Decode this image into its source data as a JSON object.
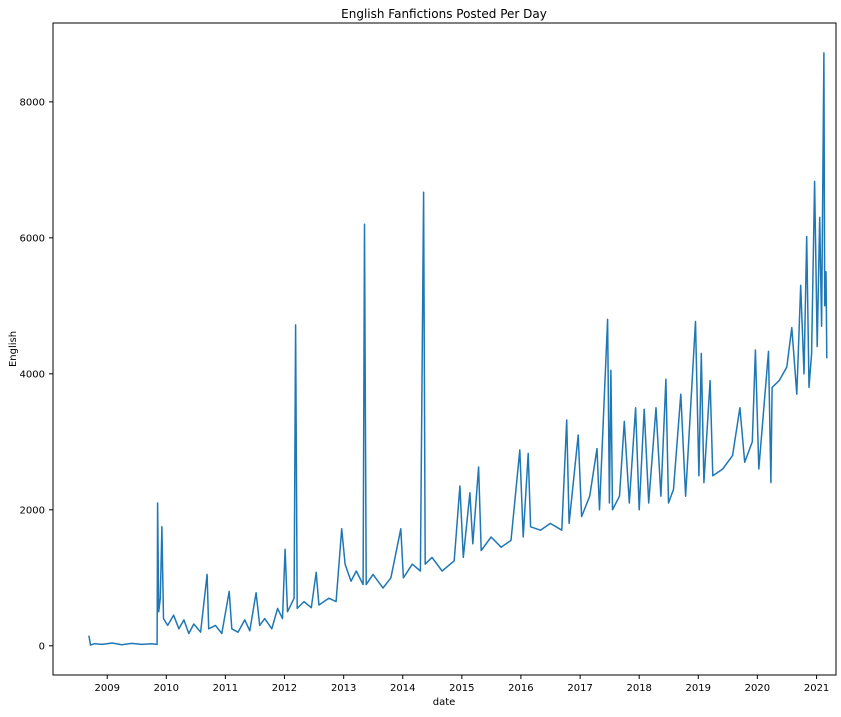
{
  "chart_data": {
    "type": "line",
    "title": "English Fanfictions Posted Per Day",
    "xlabel": "date",
    "ylabel": "English",
    "x_range": [
      "2008-02-01",
      "2021-05-01"
    ],
    "ylim": [
      -430,
      9160
    ],
    "xticks": [
      {
        "label": "2009",
        "date": "2009-01-01"
      },
      {
        "label": "2010",
        "date": "2010-01-01"
      },
      {
        "label": "2011",
        "date": "2011-01-01"
      },
      {
        "label": "2012",
        "date": "2012-01-01"
      },
      {
        "label": "2013",
        "date": "2013-01-01"
      },
      {
        "label": "2014",
        "date": "2014-01-01"
      },
      {
        "label": "2015",
        "date": "2015-01-01"
      },
      {
        "label": "2016",
        "date": "2016-01-01"
      },
      {
        "label": "2017",
        "date": "2017-01-01"
      },
      {
        "label": "2018",
        "date": "2018-01-01"
      },
      {
        "label": "2019",
        "date": "2019-01-01"
      },
      {
        "label": "2020",
        "date": "2020-01-01"
      },
      {
        "label": "2021",
        "date": "2021-01-01"
      }
    ],
    "yticks": [
      0,
      2000,
      4000,
      6000,
      8000
    ],
    "grid": false,
    "series_color": "#1f77b4",
    "series": [
      {
        "points": [
          [
            "2008-09-10",
            150
          ],
          [
            "2008-09-20",
            10
          ],
          [
            "2008-10-15",
            30
          ],
          [
            "2008-12-01",
            20
          ],
          [
            "2009-02-01",
            40
          ],
          [
            "2009-04-01",
            15
          ],
          [
            "2009-06-01",
            35
          ],
          [
            "2009-08-01",
            20
          ],
          [
            "2009-10-01",
            30
          ],
          [
            "2009-11-05",
            20
          ],
          [
            "2009-11-08",
            2100
          ],
          [
            "2009-11-15",
            500
          ],
          [
            "2009-11-25",
            700
          ],
          [
            "2009-12-05",
            1750
          ],
          [
            "2009-12-15",
            400
          ],
          [
            "2010-01-10",
            300
          ],
          [
            "2010-02-15",
            450
          ],
          [
            "2010-03-20",
            250
          ],
          [
            "2010-04-20",
            380
          ],
          [
            "2010-05-20",
            180
          ],
          [
            "2010-06-20",
            320
          ],
          [
            "2010-08-01",
            200
          ],
          [
            "2010-09-10",
            1050
          ],
          [
            "2010-09-20",
            250
          ],
          [
            "2010-11-01",
            300
          ],
          [
            "2010-12-10",
            180
          ],
          [
            "2011-01-25",
            800
          ],
          [
            "2011-02-10",
            250
          ],
          [
            "2011-03-20",
            200
          ],
          [
            "2011-05-01",
            380
          ],
          [
            "2011-06-01",
            220
          ],
          [
            "2011-07-10",
            780
          ],
          [
            "2011-08-01",
            300
          ],
          [
            "2011-09-01",
            400
          ],
          [
            "2011-10-15",
            250
          ],
          [
            "2011-11-20",
            550
          ],
          [
            "2011-12-20",
            400
          ],
          [
            "2012-01-05",
            1420
          ],
          [
            "2012-01-20",
            500
          ],
          [
            "2012-03-01",
            700
          ],
          [
            "2012-03-10",
            4720
          ],
          [
            "2012-03-20",
            550
          ],
          [
            "2012-05-01",
            650
          ],
          [
            "2012-06-15",
            560
          ],
          [
            "2012-07-15",
            1080
          ],
          [
            "2012-08-01",
            600
          ],
          [
            "2012-10-01",
            700
          ],
          [
            "2012-11-15",
            650
          ],
          [
            "2012-12-20",
            1720
          ],
          [
            "2013-01-10",
            1200
          ],
          [
            "2013-02-15",
            950
          ],
          [
            "2013-03-20",
            1100
          ],
          [
            "2013-05-01",
            900
          ],
          [
            "2013-05-10",
            6200
          ],
          [
            "2013-05-20",
            900
          ],
          [
            "2013-07-01",
            1050
          ],
          [
            "2013-09-01",
            850
          ],
          [
            "2013-10-20",
            1000
          ],
          [
            "2013-12-20",
            1720
          ],
          [
            "2014-01-05",
            1000
          ],
          [
            "2014-03-01",
            1200
          ],
          [
            "2014-04-20",
            1100
          ],
          [
            "2014-05-10",
            6670
          ],
          [
            "2014-05-20",
            1200
          ],
          [
            "2014-07-01",
            1300
          ],
          [
            "2014-09-01",
            1100
          ],
          [
            "2014-11-15",
            1250
          ],
          [
            "2014-12-20",
            2350
          ],
          [
            "2015-01-10",
            1300
          ],
          [
            "2015-02-20",
            2250
          ],
          [
            "2015-03-10",
            1500
          ],
          [
            "2015-04-15",
            2630
          ],
          [
            "2015-05-01",
            1400
          ],
          [
            "2015-07-01",
            1600
          ],
          [
            "2015-09-01",
            1450
          ],
          [
            "2015-11-01",
            1550
          ],
          [
            "2015-12-25",
            2880
          ],
          [
            "2016-01-15",
            1600
          ],
          [
            "2016-02-15",
            2830
          ],
          [
            "2016-03-01",
            1750
          ],
          [
            "2016-05-01",
            1700
          ],
          [
            "2016-07-01",
            1800
          ],
          [
            "2016-09-10",
            1700
          ],
          [
            "2016-10-10",
            3320
          ],
          [
            "2016-10-25",
            1800
          ],
          [
            "2016-12-20",
            3100
          ],
          [
            "2017-01-10",
            1900
          ],
          [
            "2017-03-01",
            2200
          ],
          [
            "2017-04-15",
            2900
          ],
          [
            "2017-05-01",
            2000
          ],
          [
            "2017-06-20",
            4800
          ],
          [
            "2017-07-01",
            2100
          ],
          [
            "2017-07-10",
            4050
          ],
          [
            "2017-07-20",
            2000
          ],
          [
            "2017-09-01",
            2200
          ],
          [
            "2017-10-01",
            3300
          ],
          [
            "2017-11-01",
            2100
          ],
          [
            "2017-12-10",
            3500
          ],
          [
            "2018-01-01",
            2000
          ],
          [
            "2018-02-01",
            3480
          ],
          [
            "2018-03-01",
            2100
          ],
          [
            "2018-04-15",
            3500
          ],
          [
            "2018-05-15",
            2200
          ],
          [
            "2018-06-15",
            3920
          ],
          [
            "2018-07-01",
            2100
          ],
          [
            "2018-08-01",
            2300
          ],
          [
            "2018-09-15",
            3700
          ],
          [
            "2018-10-15",
            2200
          ],
          [
            "2018-12-15",
            4770
          ],
          [
            "2019-01-05",
            2500
          ],
          [
            "2019-01-20",
            4300
          ],
          [
            "2019-02-05",
            2400
          ],
          [
            "2019-03-15",
            3900
          ],
          [
            "2019-04-01",
            2500
          ],
          [
            "2019-06-01",
            2600
          ],
          [
            "2019-08-01",
            2800
          ],
          [
            "2019-09-15",
            3500
          ],
          [
            "2019-10-15",
            2700
          ],
          [
            "2019-12-01",
            3000
          ],
          [
            "2019-12-20",
            4350
          ],
          [
            "2020-01-10",
            2600
          ],
          [
            "2020-03-10",
            4330
          ],
          [
            "2020-03-25",
            2400
          ],
          [
            "2020-04-01",
            3800
          ],
          [
            "2020-05-15",
            3900
          ],
          [
            "2020-07-01",
            4100
          ],
          [
            "2020-08-01",
            4680
          ],
          [
            "2020-09-01",
            3700
          ],
          [
            "2020-09-25",
            5300
          ],
          [
            "2020-10-15",
            4000
          ],
          [
            "2020-11-01",
            6020
          ],
          [
            "2020-11-15",
            3800
          ],
          [
            "2020-12-01",
            4300
          ],
          [
            "2020-12-20",
            6830
          ],
          [
            "2021-01-05",
            4400
          ],
          [
            "2021-01-20",
            6300
          ],
          [
            "2021-02-01",
            4700
          ],
          [
            "2021-02-15",
            8720
          ],
          [
            "2021-02-20",
            5000
          ],
          [
            "2021-02-28",
            5500
          ],
          [
            "2021-03-05",
            4230
          ]
        ]
      }
    ]
  }
}
